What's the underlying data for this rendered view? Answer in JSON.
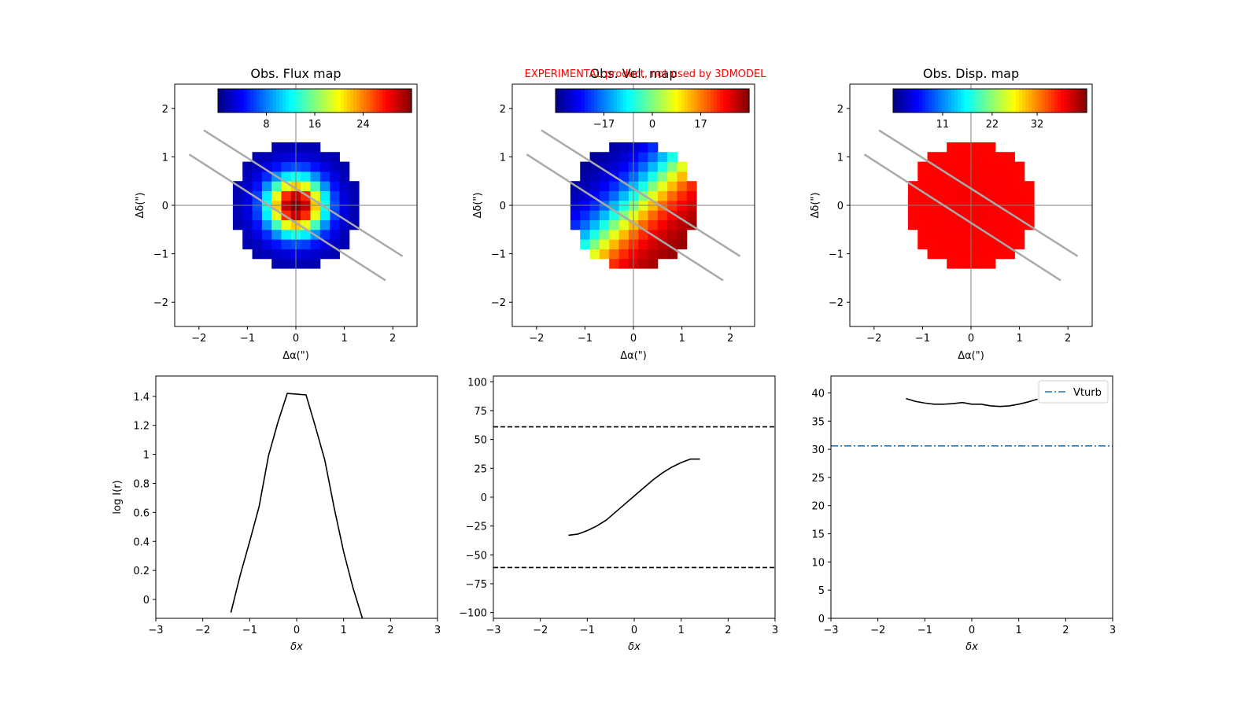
{
  "warning": "EXPERIMENTAL product, not used by 3DMODEL",
  "colors": {
    "line": "#000000",
    "vturb": "#1f77b4",
    "slit": "#aaaaaa",
    "axis_cross": "#808080"
  },
  "chart_data": [
    {
      "type": "heatmap",
      "title": "Obs. Flux map",
      "xlabel": "Δα(\")",
      "ylabel": "Δδ(\")",
      "xlim": [
        -2.5,
        2.5
      ],
      "ylim": [
        -2.5,
        2.5
      ],
      "xticks": [
        -2,
        -1,
        0,
        1,
        2
      ],
      "yticks": [
        -2,
        -1,
        0,
        1,
        2
      ],
      "colormap": "jet",
      "colorbar": {
        "range": [
          0,
          32
        ],
        "ticks": [
          8,
          16,
          24
        ]
      },
      "field": {
        "type": "radial",
        "peak": 32,
        "sigma": 0.42,
        "floor": 1.2
      }
    },
    {
      "type": "heatmap",
      "title": "Obs. Vel. map",
      "xlabel": "Δα(\")",
      "ylabel": "Δδ(\")",
      "xlim": [
        -2.5,
        2.5
      ],
      "ylim": [
        -2.5,
        2.5
      ],
      "xticks": [
        -2,
        -1,
        0,
        1,
        2
      ],
      "yticks": [
        -2,
        -1,
        0,
        1,
        2
      ],
      "colormap": "jet",
      "colorbar": {
        "range": [
          -34,
          34
        ],
        "ticks": [
          -17,
          0,
          17
        ]
      },
      "field": {
        "type": "rotation",
        "vmax": 34,
        "scale": 0.7
      }
    },
    {
      "type": "heatmap",
      "title": "Obs. Disp. map",
      "xlabel": "Δα(\")",
      "ylabel": "Δδ(\")",
      "xlim": [
        -2.5,
        2.5
      ],
      "ylim": [
        -2.5,
        2.5
      ],
      "xticks": [
        -2,
        -1,
        0,
        1,
        2
      ],
      "yticks": [
        -2,
        -1,
        0,
        1,
        2
      ],
      "colormap": "jet",
      "colorbar": {
        "range": [
          0,
          43
        ],
        "ticks": [
          11,
          22,
          32
        ]
      },
      "field": {
        "type": "flat",
        "center": 38,
        "edge": 37.5
      }
    },
    {
      "type": "line",
      "title": "",
      "xlabel": "δx",
      "ylabel": "log I(r)",
      "xlim": [
        -3,
        3
      ],
      "ylim": [
        -0.13,
        1.54
      ],
      "xticks": [
        -3,
        -2,
        -1,
        0,
        1,
        2,
        3
      ],
      "yticks": [
        0.0,
        0.2,
        0.4,
        0.6,
        0.8,
        1.0,
        1.2,
        1.4
      ],
      "series": [
        {
          "x": [
            -1.4,
            -1.2,
            -1.0,
            -0.8,
            -0.6,
            -0.4,
            -0.2,
            0.2,
            0.4,
            0.6,
            0.8,
            1.0,
            1.2,
            1.4
          ],
          "y": [
            -0.09,
            0.17,
            0.4,
            0.64,
            0.99,
            1.22,
            1.42,
            1.41,
            1.19,
            0.96,
            0.63,
            0.33,
            0.08,
            -0.13
          ]
        }
      ]
    },
    {
      "type": "line",
      "title": "",
      "xlabel": "δx",
      "ylabel": "",
      "xlim": [
        -3,
        3
      ],
      "ylim": [
        -105,
        105
      ],
      "xticks": [
        -3,
        -2,
        -1,
        0,
        1,
        2,
        3
      ],
      "yticks": [
        -100,
        -75,
        -50,
        -25,
        0,
        25,
        50,
        75,
        100
      ],
      "hlines": [
        {
          "y": 61,
          "style": "dashed"
        },
        {
          "y": -61,
          "style": "dashed"
        }
      ],
      "series": [
        {
          "x": [
            -1.4,
            -1.2,
            -1.0,
            -0.8,
            -0.6,
            -0.4,
            -0.2,
            0.0,
            0.2,
            0.4,
            0.6,
            0.8,
            1.0,
            1.2,
            1.4
          ],
          "y": [
            -33,
            -32,
            -29,
            -25,
            -20,
            -13,
            -6,
            1,
            8,
            15,
            21,
            26,
            30,
            33,
            33
          ]
        }
      ]
    },
    {
      "type": "line",
      "title": "",
      "xlabel": "δx",
      "ylabel": "",
      "xlim": [
        -3,
        3
      ],
      "ylim": [
        0,
        43
      ],
      "xticks": [
        -3,
        -2,
        -1,
        0,
        1,
        2,
        3
      ],
      "yticks": [
        0,
        5,
        10,
        15,
        20,
        25,
        30,
        35,
        40
      ],
      "legend": {
        "position": "top-right",
        "entries": [
          "Vturb"
        ]
      },
      "hlines": [
        {
          "y": 30.6,
          "style": "dashdot",
          "name": "Vturb"
        }
      ],
      "series": [
        {
          "x": [
            -1.4,
            -1.2,
            -1.0,
            -0.8,
            -0.6,
            -0.4,
            -0.2,
            0.0,
            0.2,
            0.4,
            0.6,
            0.8,
            1.0,
            1.2,
            1.4
          ],
          "y": [
            39.0,
            38.5,
            38.2,
            38.0,
            38.0,
            38.1,
            38.3,
            38.0,
            38.0,
            37.7,
            37.6,
            37.7,
            38.0,
            38.4,
            38.9
          ]
        }
      ]
    }
  ]
}
